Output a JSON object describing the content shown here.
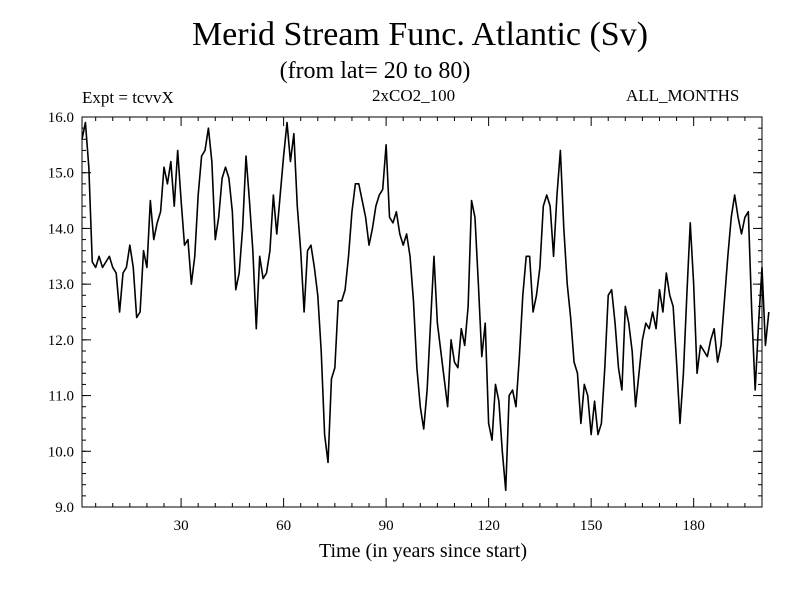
{
  "header": {
    "title": "Merid Stream Func. Atlantic (Sv)",
    "subtitle": "(from lat= 20 to 80)",
    "expt_label": "Expt = tcvvX",
    "case_label": "2xCO2_100",
    "months_label": "ALL_MONTHS"
  },
  "chart_data": {
    "type": "line",
    "title": "Merid Stream Func. Atlantic (Sv)",
    "xlabel": "Time (in years since start)",
    "ylabel": "",
    "xlim": [
      1,
      200
    ],
    "ylim": [
      9.0,
      16.0
    ],
    "x_ticks": [
      30,
      60,
      90,
      120,
      150,
      180
    ],
    "y_ticks": [
      "9.0",
      "10.0",
      "11.0",
      "12.0",
      "13.0",
      "14.0",
      "15.0",
      "16.0"
    ],
    "grid": false,
    "series": [
      {
        "values": [
          15.6,
          15.9,
          15.1,
          13.4,
          13.3,
          13.5,
          13.3,
          13.4,
          13.5,
          13.3,
          13.2,
          12.5,
          13.2,
          13.3,
          13.7,
          13.3,
          12.4,
          12.5,
          13.6,
          13.3,
          14.5,
          13.8,
          14.1,
          14.3,
          15.1,
          14.8,
          15.2,
          14.4,
          15.4,
          14.5,
          13.7,
          13.8,
          13.0,
          13.5,
          14.6,
          15.3,
          15.4,
          15.8,
          15.2,
          13.8,
          14.2,
          14.9,
          15.1,
          14.9,
          14.3,
          12.9,
          13.2,
          14.0,
          15.3,
          14.5,
          13.6,
          12.2,
          13.5,
          13.1,
          13.2,
          13.6,
          14.6,
          13.9,
          14.6,
          15.3,
          15.9,
          15.2,
          15.7,
          14.4,
          13.6,
          12.5,
          13.6,
          13.7,
          13.3,
          12.8,
          11.8,
          10.3,
          9.8,
          11.3,
          11.5,
          12.7,
          12.7,
          12.9,
          13.5,
          14.3,
          14.8,
          14.8,
          14.5,
          14.2,
          13.7,
          14.0,
          14.4,
          14.6,
          14.7,
          15.5,
          14.2,
          14.1,
          14.3,
          13.9,
          13.7,
          13.9,
          13.5,
          12.7,
          11.5,
          10.8,
          10.4,
          11.1,
          12.3,
          13.5,
          12.3,
          11.8,
          11.3,
          10.8,
          12.0,
          11.6,
          11.5,
          12.2,
          11.9,
          12.6,
          14.5,
          14.2,
          13.0,
          11.7,
          12.3,
          10.5,
          10.2,
          11.2,
          10.9,
          10.0,
          9.3,
          11.0,
          11.1,
          10.8,
          11.7,
          12.8,
          13.5,
          13.5,
          12.5,
          12.8,
          13.3,
          14.4,
          14.6,
          14.4,
          13.5,
          14.6,
          15.4,
          14.0,
          13.0,
          12.4,
          11.6,
          11.4,
          10.5,
          11.2,
          11.0,
          10.3,
          10.9,
          10.3,
          10.5,
          11.5,
          12.8,
          12.9,
          12.3,
          11.5,
          11.1,
          12.6,
          12.3,
          11.8,
          10.8,
          11.4,
          12.0,
          12.3,
          12.2,
          12.5,
          12.2,
          12.9,
          12.5,
          13.2,
          12.8,
          12.6,
          11.6,
          10.5,
          11.4,
          12.8,
          14.1,
          13.0,
          11.4,
          11.9,
          11.8,
          11.7,
          12.0,
          12.2,
          11.6,
          11.9,
          12.7,
          13.5,
          14.2,
          14.6,
          14.2,
          13.9,
          14.2,
          14.3,
          12.5,
          11.1,
          12.3,
          13.3,
          11.9,
          12.5
        ]
      }
    ]
  }
}
